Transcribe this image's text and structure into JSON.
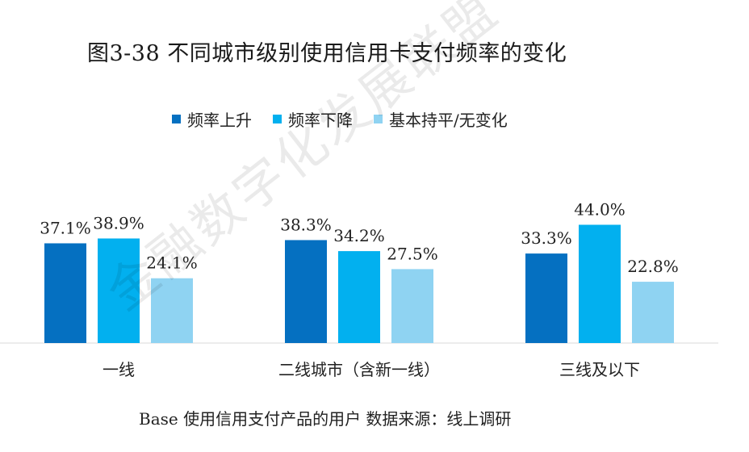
{
  "chart_data": {
    "type": "bar",
    "title": "图3-38 不同城市级别使用信用卡支付频率的变化",
    "categories": [
      "一线",
      "二线城市（含新一线）",
      "三线及以下"
    ],
    "series": [
      {
        "name": "频率上升",
        "color": "#0570c1",
        "values": [
          37.1,
          38.3,
          33.3
        ],
        "labels": [
          "37.1%",
          "38.3%",
          "33.3%"
        ]
      },
      {
        "name": "频率下降",
        "color": "#02b0ef",
        "values": [
          38.9,
          34.2,
          44.0
        ],
        "labels": [
          "38.9%",
          "34.2%",
          "44.0%"
        ]
      },
      {
        "name": "基本持平/无变化",
        "color": "#8fd3f2",
        "values": [
          24.1,
          27.5,
          22.8
        ],
        "labels": [
          "24.1%",
          "27.5%",
          "22.8%"
        ]
      }
    ],
    "ylim": [
      0,
      50
    ],
    "grid": false,
    "legend_position": "top"
  },
  "footnote": "Base 使用信用支付产品的用户  数据来源：线上调研",
  "watermark": "金融数字化发展联盟"
}
